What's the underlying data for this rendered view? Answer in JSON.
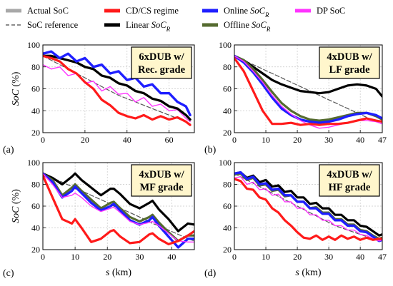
{
  "legend": [
    {
      "label": "Actual SoC",
      "color": "#a8a8a8",
      "dash": false
    },
    {
      "label": "CD/CS regime",
      "color": "#ff1a1a",
      "dash": false
    },
    {
      "label": "Online ",
      "sub": "SoC",
      "subR": "R",
      "color": "#1f1fff",
      "dash": false
    },
    {
      "label": "DP SoC",
      "color": "#ff33ff",
      "dash": false
    },
    {
      "label": "SoC reference",
      "color": "#666666",
      "dash": true
    },
    {
      "label": "Linear ",
      "sub": "SoC",
      "subR": "R",
      "color": "#000000",
      "dash": false
    },
    {
      "label": "Offline  ",
      "sub": "SoC",
      "subR": "R",
      "color": "#556b2f",
      "dash": false
    }
  ],
  "chart_data": [
    {
      "type": "line",
      "panel": "(a)",
      "box": [
        "6xDUB w/",
        "Rec. grade"
      ],
      "xlabel": "",
      "ylabel": "SoC (%)",
      "xlim": [
        0,
        72
      ],
      "ylim": [
        20,
        100
      ],
      "xticks": [
        "0",
        "20",
        "40",
        "60"
      ],
      "xtickvals": [
        0,
        20,
        40,
        60
      ],
      "yticks": [
        "20",
        "40",
        "60",
        "80",
        "100"
      ],
      "ytickvals": [
        20,
        40,
        60,
        80,
        100
      ],
      "x": [
        0,
        4,
        8,
        12,
        16,
        20,
        24,
        28,
        32,
        36,
        40,
        44,
        48,
        52,
        56,
        60,
        64,
        68,
        70
      ],
      "series": [
        {
          "name": "SoC reference",
          "values": [
            90,
            86,
            82,
            78,
            74,
            70,
            66,
            62,
            58,
            54,
            51,
            48,
            45,
            42,
            39,
            36,
            33,
            30,
            28
          ]
        },
        {
          "name": "DP SoC",
          "values": [
            82,
            78,
            80,
            72,
            74,
            65,
            67,
            58,
            62,
            55,
            56,
            48,
            52,
            44,
            46,
            40,
            41,
            33,
            30
          ]
        },
        {
          "name": "Offline SoCR",
          "values": [
            90,
            90,
            88,
            86,
            84,
            80,
            78,
            72,
            70,
            65,
            63,
            58,
            56,
            51,
            49,
            44,
            42,
            36,
            32
          ]
        },
        {
          "name": "Linear SoCR",
          "values": [
            90,
            90,
            88,
            86,
            84,
            80,
            78,
            72,
            70,
            65,
            63,
            58,
            56,
            51,
            49,
            44,
            42,
            36,
            32
          ]
        },
        {
          "name": "Online SoCR",
          "values": [
            92,
            94,
            88,
            92,
            85,
            88,
            80,
            82,
            74,
            76,
            68,
            70,
            62,
            64,
            56,
            56,
            48,
            44,
            36
          ]
        },
        {
          "name": "CD/CS regime",
          "values": [
            90,
            88,
            85,
            78,
            74,
            66,
            60,
            50,
            45,
            38,
            35,
            33,
            36,
            32,
            35,
            32,
            34,
            30,
            27
          ]
        }
      ]
    },
    {
      "type": "line",
      "panel": "(b)",
      "box": [
        "4xDUB w/",
        "LF grade"
      ],
      "xlabel": "",
      "ylabel": "",
      "xlim": [
        0,
        47
      ],
      "ylim": [
        20,
        100
      ],
      "xticks": [
        "0",
        "10",
        "20",
        "30",
        "40",
        "47"
      ],
      "xtickvals": [
        0,
        10,
        20,
        30,
        40,
        47
      ],
      "yticks": [
        "20",
        "40",
        "60",
        "80",
        "100"
      ],
      "ytickvals": [
        20,
        40,
        60,
        80,
        100
      ],
      "x": [
        0,
        3,
        6,
        9,
        12,
        15,
        18,
        21,
        24,
        27,
        30,
        33,
        36,
        39,
        42,
        45,
        47
      ],
      "series": [
        {
          "name": "SoC reference",
          "values": [
            90,
            86,
            82,
            78,
            74,
            70,
            66,
            62,
            58,
            54,
            50,
            46,
            42,
            38,
            34,
            30,
            28
          ]
        },
        {
          "name": "Linear SoCR",
          "values": [
            90,
            86,
            80,
            74,
            68,
            64,
            61,
            58,
            57,
            56,
            57,
            60,
            63,
            64,
            63,
            60,
            53
          ]
        },
        {
          "name": "Offline SoCR",
          "values": [
            90,
            86,
            78,
            68,
            57,
            47,
            40,
            35,
            32,
            31,
            32,
            34,
            36,
            38,
            38,
            35,
            32
          ]
        },
        {
          "name": "Online SoCR",
          "values": [
            90,
            84,
            75,
            64,
            52,
            42,
            36,
            32,
            30,
            29,
            30,
            32,
            35,
            37,
            38,
            36,
            33
          ]
        },
        {
          "name": "DP SoC",
          "values": [
            90,
            85,
            76,
            66,
            54,
            44,
            37,
            31,
            27,
            24,
            25,
            27,
            29,
            31,
            31,
            30,
            28
          ]
        },
        {
          "name": "CD/CS regime",
          "values": [
            88,
            76,
            58,
            40,
            28,
            28,
            29,
            27,
            28,
            27,
            28,
            28,
            29,
            31,
            33,
            31,
            30
          ]
        }
      ]
    },
    {
      "type": "line",
      "panel": "(c)",
      "box": [
        "4xDUB w/",
        "MF grade"
      ],
      "xlabel": "s (km)",
      "ylabel": "SoC (%)",
      "xlim": [
        0,
        47
      ],
      "ylim": [
        20,
        100
      ],
      "xticks": [
        "0",
        "10",
        "20",
        "30",
        "40"
      ],
      "xtickvals": [
        0,
        10,
        20,
        30,
        40
      ],
      "yticks": [
        "20",
        "40",
        "60",
        "80",
        "100"
      ],
      "ytickvals": [
        20,
        40,
        60,
        80,
        100
      ],
      "x": [
        0,
        3,
        6,
        9,
        10,
        12,
        15,
        18,
        21,
        22,
        24,
        27,
        30,
        33,
        34,
        36,
        39,
        42,
        45,
        47
      ],
      "series": [
        {
          "name": "SoC reference",
          "values": [
            90,
            86,
            82,
            78,
            76,
            74,
            70,
            66,
            62,
            60,
            58,
            54,
            50,
            46,
            44,
            42,
            38,
            34,
            30,
            28
          ]
        },
        {
          "name": "Linear SoCR",
          "values": [
            90,
            86,
            80,
            87,
            90,
            84,
            77,
            70,
            76,
            76,
            71,
            62,
            58,
            63,
            65,
            57,
            48,
            37,
            44,
            43
          ]
        },
        {
          "name": "Offline SoCR",
          "values": [
            90,
            84,
            70,
            77,
            80,
            74,
            66,
            58,
            63,
            64,
            58,
            50,
            46,
            50,
            52,
            45,
            36,
            28,
            33,
            33
          ]
        },
        {
          "name": "Online SoCR",
          "values": [
            90,
            82,
            68,
            74,
            78,
            72,
            63,
            56,
            60,
            62,
            56,
            47,
            43,
            47,
            50,
            42,
            32,
            22,
            30,
            30
          ]
        },
        {
          "name": "DP SoC",
          "values": [
            90,
            80,
            68,
            70,
            72,
            68,
            60,
            55,
            58,
            59,
            54,
            46,
            43,
            45,
            46,
            42,
            35,
            28,
            27,
            27
          ]
        },
        {
          "name": "CD/CS regime",
          "values": [
            88,
            68,
            48,
            44,
            48,
            40,
            27,
            30,
            37,
            38,
            32,
            26,
            27,
            34,
            35,
            30,
            25,
            28,
            33,
            37
          ]
        }
      ]
    },
    {
      "type": "line",
      "panel": "(d)",
      "box": [
        "4xDUB w/",
        "HF grade"
      ],
      "xlabel": "s (km)",
      "ylabel": "",
      "xlim": [
        0,
        47
      ],
      "ylim": [
        20,
        100
      ],
      "xticks": [
        "0",
        "10",
        "20",
        "30",
        "40",
        "47"
      ],
      "xtickvals": [
        0,
        10,
        20,
        30,
        40,
        47
      ],
      "yticks": [
        "20",
        "40",
        "60",
        "80",
        "100"
      ],
      "ytickvals": [
        20,
        40,
        60,
        80,
        100
      ],
      "x": [
        0,
        2,
        4,
        6,
        8,
        10,
        12,
        14,
        16,
        18,
        20,
        22,
        24,
        26,
        28,
        30,
        32,
        34,
        36,
        38,
        40,
        42,
        44,
        46,
        47
      ],
      "series": [
        {
          "name": "SoC reference",
          "values": [
            90,
            87,
            84,
            81,
            78,
            75,
            72,
            69,
            66,
            63,
            60,
            57,
            54,
            51,
            48,
            45,
            42,
            40,
            38,
            36,
            34,
            32,
            30,
            28,
            28
          ]
        },
        {
          "name": "Linear SoCR",
          "values": [
            90,
            91,
            86,
            88,
            82,
            84,
            78,
            79,
            73,
            74,
            68,
            68,
            62,
            63,
            58,
            58,
            52,
            52,
            47,
            47,
            42,
            41,
            37,
            33,
            34
          ]
        },
        {
          "name": "Offline SoCR",
          "values": [
            89,
            90,
            84,
            86,
            79,
            80,
            74,
            75,
            69,
            70,
            64,
            64,
            58,
            59,
            54,
            54,
            48,
            48,
            43,
            43,
            38,
            37,
            33,
            30,
            31
          ]
        },
        {
          "name": "Online SoCR",
          "values": [
            90,
            91,
            85,
            87,
            80,
            81,
            75,
            76,
            70,
            70,
            64,
            64,
            58,
            58,
            53,
            53,
            47,
            47,
            42,
            42,
            37,
            36,
            32,
            28,
            29
          ]
        },
        {
          "name": "DP SoC",
          "values": [
            86,
            87,
            80,
            82,
            75,
            76,
            70,
            71,
            64,
            64,
            58,
            58,
            52,
            52,
            47,
            47,
            42,
            42,
            38,
            38,
            34,
            33,
            30,
            28,
            29
          ]
        },
        {
          "name": "CD/CS regime",
          "values": [
            85,
            83,
            76,
            75,
            68,
            66,
            58,
            54,
            47,
            42,
            36,
            31,
            30,
            33,
            29,
            32,
            29,
            33,
            30,
            32,
            29,
            31,
            29,
            30,
            30
          ]
        }
      ]
    }
  ]
}
